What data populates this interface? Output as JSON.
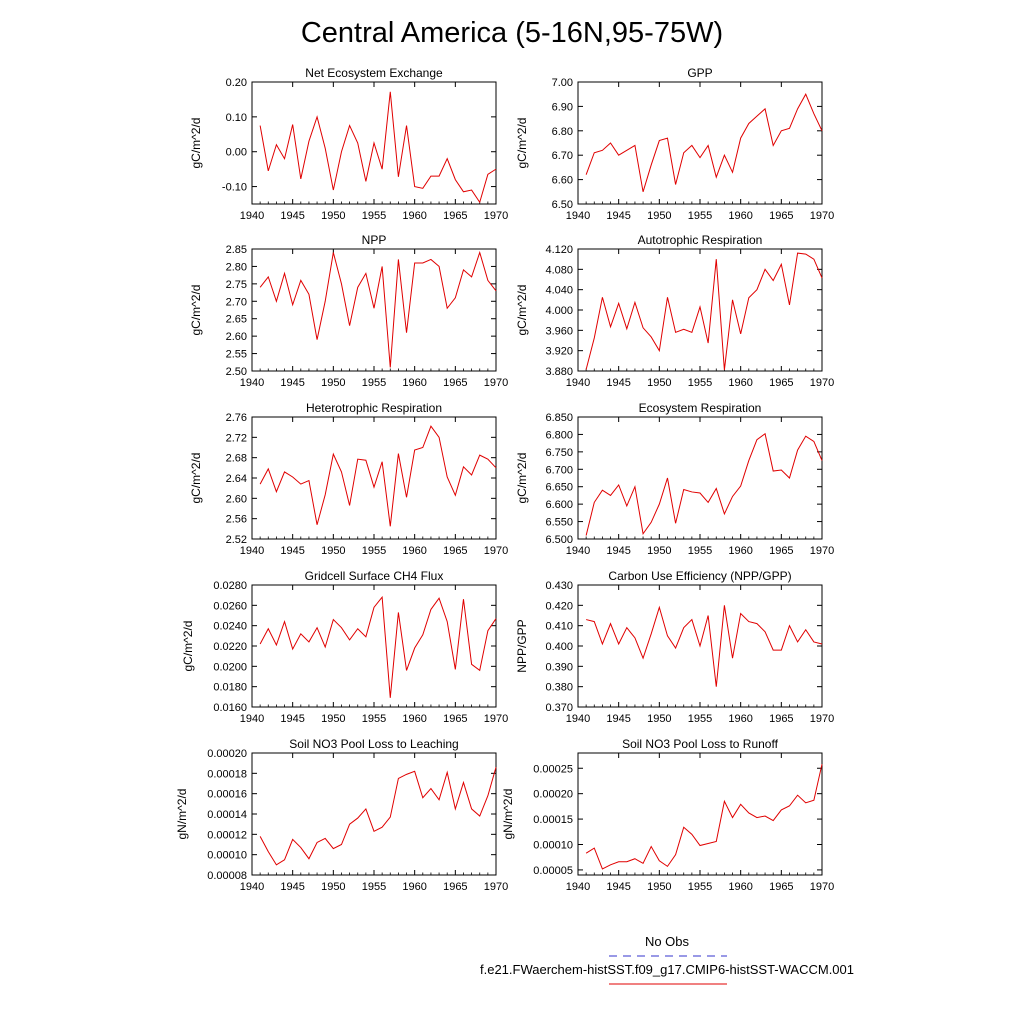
{
  "page_title": "Central America (5-16N,95-75W)",
  "legend": {
    "obs_label": "No Obs",
    "obs_color": "#3333cc",
    "model_label": "f.e21.FWaerchem-histSST.f09_g17.CMIP6-histSST-WACCM.001",
    "model_color": "#e00000"
  },
  "chart_data": [
    {
      "type": "line",
      "title": "Net Ecosystem Exchange",
      "ylabel": "gC/m^2/d",
      "xlim": [
        1940,
        1970
      ],
      "ylim": [
        -0.15,
        0.2
      ],
      "xticks": [
        1940,
        1945,
        1950,
        1955,
        1960,
        1965,
        1970
      ],
      "yticks": [
        "0.20",
        "0.10",
        "0.00",
        "-0.10"
      ],
      "ytick_values": [
        0.2,
        0.1,
        0.0,
        -0.1
      ],
      "x": [
        1941,
        1942,
        1943,
        1944,
        1945,
        1946,
        1947,
        1948,
        1949,
        1950,
        1951,
        1952,
        1953,
        1954,
        1955,
        1956,
        1957,
        1958,
        1959,
        1960,
        1961,
        1962,
        1963,
        1964,
        1965,
        1966,
        1967,
        1968,
        1969,
        1970
      ],
      "values": [
        0.075,
        -0.055,
        0.02,
        -0.02,
        0.078,
        -0.078,
        0.03,
        0.1,
        0.01,
        -0.11,
        0.0,
        0.075,
        0.025,
        -0.085,
        0.025,
        -0.05,
        0.172,
        -0.072,
        0.075,
        -0.1,
        -0.105,
        -0.07,
        -0.07,
        -0.02,
        -0.08,
        -0.115,
        -0.11,
        -0.145,
        -0.065,
        -0.05
      ]
    },
    {
      "type": "line",
      "title": "GPP",
      "ylabel": "gC/m^2/d",
      "xlim": [
        1940,
        1970
      ],
      "ylim": [
        6.5,
        7.0
      ],
      "xticks": [
        1940,
        1945,
        1950,
        1955,
        1960,
        1965,
        1970
      ],
      "yticks": [
        "7.00",
        "6.90",
        "6.80",
        "6.70",
        "6.60",
        "6.50"
      ],
      "ytick_values": [
        7.0,
        6.9,
        6.8,
        6.7,
        6.6,
        6.5
      ],
      "x": [
        1941,
        1942,
        1943,
        1944,
        1945,
        1946,
        1947,
        1948,
        1949,
        1950,
        1951,
        1952,
        1953,
        1954,
        1955,
        1956,
        1957,
        1958,
        1959,
        1960,
        1961,
        1962,
        1963,
        1964,
        1965,
        1966,
        1967,
        1968,
        1969,
        1970
      ],
      "values": [
        6.62,
        6.71,
        6.72,
        6.75,
        6.7,
        6.72,
        6.74,
        6.55,
        6.66,
        6.76,
        6.77,
        6.58,
        6.71,
        6.74,
        6.69,
        6.74,
        6.61,
        6.7,
        6.63,
        6.77,
        6.83,
        6.86,
        6.89,
        6.74,
        6.8,
        6.81,
        6.89,
        6.95,
        6.87,
        6.8
      ]
    },
    {
      "type": "line",
      "title": "NPP",
      "ylabel": "gC/m^2/d",
      "xlim": [
        1940,
        1970
      ],
      "ylim": [
        2.5,
        2.85
      ],
      "xticks": [
        1940,
        1945,
        1950,
        1955,
        1960,
        1965,
        1970
      ],
      "yticks": [
        "2.85",
        "2.80",
        "2.75",
        "2.70",
        "2.65",
        "2.60",
        "2.55",
        "2.50"
      ],
      "ytick_values": [
        2.85,
        2.8,
        2.75,
        2.7,
        2.65,
        2.6,
        2.55,
        2.5
      ],
      "x": [
        1941,
        1942,
        1943,
        1944,
        1945,
        1946,
        1947,
        1948,
        1949,
        1950,
        1951,
        1952,
        1953,
        1954,
        1955,
        1956,
        1957,
        1958,
        1959,
        1960,
        1961,
        1962,
        1963,
        1964,
        1965,
        1966,
        1967,
        1968,
        1969,
        1970
      ],
      "values": [
        2.74,
        2.77,
        2.7,
        2.78,
        2.69,
        2.76,
        2.72,
        2.59,
        2.7,
        2.84,
        2.75,
        2.63,
        2.74,
        2.78,
        2.68,
        2.8,
        2.51,
        2.82,
        2.61,
        2.81,
        2.81,
        2.82,
        2.8,
        2.68,
        2.71,
        2.79,
        2.77,
        2.84,
        2.76,
        2.73
      ]
    },
    {
      "type": "line",
      "title": "Autotrophic Respiration",
      "ylabel": "gC/m^2/d",
      "xlim": [
        1940,
        1970
      ],
      "ylim": [
        3.88,
        4.12
      ],
      "xticks": [
        1940,
        1945,
        1950,
        1955,
        1960,
        1965,
        1970
      ],
      "yticks": [
        "4.120",
        "4.080",
        "4.040",
        "4.000",
        "3.960",
        "3.920",
        "3.880"
      ],
      "ytick_values": [
        4.12,
        4.08,
        4.04,
        4.0,
        3.96,
        3.92,
        3.88
      ],
      "x": [
        1941,
        1942,
        1943,
        1944,
        1945,
        1946,
        1947,
        1948,
        1949,
        1950,
        1951,
        1952,
        1953,
        1954,
        1955,
        1956,
        1957,
        1958,
        1959,
        1960,
        1961,
        1962,
        1963,
        1964,
        1965,
        1966,
        1967,
        1968,
        1969,
        1970
      ],
      "values": [
        3.883,
        3.945,
        4.025,
        3.967,
        4.013,
        3.963,
        4.015,
        3.965,
        3.947,
        3.92,
        4.025,
        3.956,
        3.962,
        3.956,
        4.006,
        3.935,
        4.1,
        3.882,
        4.02,
        3.953,
        4.024,
        4.04,
        4.08,
        4.058,
        4.09,
        4.01,
        4.112,
        4.11,
        4.1,
        4.063
      ]
    },
    {
      "type": "line",
      "title": "Heterotrophic Respiration",
      "ylabel": "gC/m^2/d",
      "xlim": [
        1940,
        1970
      ],
      "ylim": [
        2.52,
        2.76
      ],
      "xticks": [
        1940,
        1945,
        1950,
        1955,
        1960,
        1965,
        1970
      ],
      "yticks": [
        "2.76",
        "2.72",
        "2.68",
        "2.64",
        "2.60",
        "2.56",
        "2.52"
      ],
      "ytick_values": [
        2.76,
        2.72,
        2.68,
        2.64,
        2.6,
        2.56,
        2.52
      ],
      "x": [
        1941,
        1942,
        1943,
        1944,
        1945,
        1946,
        1947,
        1948,
        1949,
        1950,
        1951,
        1952,
        1953,
        1954,
        1955,
        1956,
        1957,
        1958,
        1959,
        1960,
        1961,
        1962,
        1963,
        1964,
        1965,
        1966,
        1967,
        1968,
        1969,
        1970
      ],
      "values": [
        2.628,
        2.658,
        2.613,
        2.652,
        2.642,
        2.628,
        2.635,
        2.548,
        2.607,
        2.687,
        2.652,
        2.586,
        2.677,
        2.675,
        2.622,
        2.672,
        2.545,
        2.688,
        2.602,
        2.695,
        2.7,
        2.742,
        2.72,
        2.642,
        2.606,
        2.662,
        2.646,
        2.685,
        2.677,
        2.66
      ]
    },
    {
      "type": "line",
      "title": "Ecosystem Respiration",
      "ylabel": "gC/m^2/d",
      "xlim": [
        1940,
        1970
      ],
      "ylim": [
        6.5,
        6.85
      ],
      "xticks": [
        1940,
        1945,
        1950,
        1955,
        1960,
        1965,
        1970
      ],
      "yticks": [
        "6.850",
        "6.800",
        "6.750",
        "6.700",
        "6.650",
        "6.600",
        "6.550",
        "6.500"
      ],
      "ytick_values": [
        6.85,
        6.8,
        6.75,
        6.7,
        6.65,
        6.6,
        6.55,
        6.5
      ],
      "x": [
        1941,
        1942,
        1943,
        1944,
        1945,
        1946,
        1947,
        1948,
        1949,
        1950,
        1951,
        1952,
        1953,
        1954,
        1955,
        1956,
        1957,
        1958,
        1959,
        1960,
        1961,
        1962,
        1963,
        1964,
        1965,
        1966,
        1967,
        1968,
        1969,
        1970
      ],
      "values": [
        6.51,
        6.605,
        6.64,
        6.625,
        6.655,
        6.595,
        6.65,
        6.515,
        6.548,
        6.6,
        6.675,
        6.545,
        6.642,
        6.635,
        6.632,
        6.605,
        6.645,
        6.572,
        6.622,
        6.652,
        6.725,
        6.785,
        6.802,
        6.695,
        6.698,
        6.675,
        6.755,
        6.795,
        6.78,
        6.725
      ]
    },
    {
      "type": "line",
      "title": "Gridcell Surface CH4 Flux",
      "ylabel": "gC/m^2/d",
      "xlim": [
        1940,
        1970
      ],
      "ylim": [
        0.016,
        0.028
      ],
      "xticks": [
        1940,
        1945,
        1950,
        1955,
        1960,
        1965,
        1970
      ],
      "yticks": [
        "0.0280",
        "0.0260",
        "0.0240",
        "0.0220",
        "0.0200",
        "0.0180",
        "0.0160"
      ],
      "ytick_values": [
        0.028,
        0.026,
        0.024,
        0.022,
        0.02,
        0.018,
        0.016
      ],
      "x": [
        1941,
        1942,
        1943,
        1944,
        1945,
        1946,
        1947,
        1948,
        1949,
        1950,
        1951,
        1952,
        1953,
        1954,
        1955,
        1956,
        1957,
        1958,
        1959,
        1960,
        1961,
        1962,
        1963,
        1964,
        1965,
        1966,
        1967,
        1968,
        1969,
        1970
      ],
      "values": [
        0.0222,
        0.0237,
        0.0221,
        0.0244,
        0.0217,
        0.0232,
        0.0224,
        0.0238,
        0.0219,
        0.0246,
        0.0238,
        0.0226,
        0.0237,
        0.0229,
        0.0258,
        0.0268,
        0.0169,
        0.0253,
        0.0196,
        0.0218,
        0.0231,
        0.0256,
        0.0267,
        0.0244,
        0.0197,
        0.0266,
        0.0202,
        0.0196,
        0.0235,
        0.0247
      ]
    },
    {
      "type": "line",
      "title": "Carbon Use Efficiency (NPP/GPP)",
      "ylabel": "NPP/GPP",
      "xlim": [
        1940,
        1970
      ],
      "ylim": [
        0.37,
        0.43
      ],
      "xticks": [
        1940,
        1945,
        1950,
        1955,
        1960,
        1965,
        1970
      ],
      "yticks": [
        "0.430",
        "0.420",
        "0.410",
        "0.400",
        "0.390",
        "0.380",
        "0.370"
      ],
      "ytick_values": [
        0.43,
        0.42,
        0.41,
        0.4,
        0.39,
        0.38,
        0.37
      ],
      "x": [
        1941,
        1942,
        1943,
        1944,
        1945,
        1946,
        1947,
        1948,
        1949,
        1950,
        1951,
        1952,
        1953,
        1954,
        1955,
        1956,
        1957,
        1958,
        1959,
        1960,
        1961,
        1962,
        1963,
        1964,
        1965,
        1966,
        1967,
        1968,
        1969,
        1970
      ],
      "values": [
        0.413,
        0.412,
        0.401,
        0.411,
        0.401,
        0.409,
        0.404,
        0.394,
        0.406,
        0.419,
        0.405,
        0.399,
        0.409,
        0.413,
        0.4,
        0.415,
        0.38,
        0.42,
        0.394,
        0.416,
        0.412,
        0.411,
        0.407,
        0.398,
        0.398,
        0.41,
        0.402,
        0.408,
        0.402,
        0.401
      ]
    },
    {
      "type": "line",
      "title": "Soil NO3 Pool Loss to Leaching",
      "ylabel": "gN/m^2/d",
      "xlim": [
        1940,
        1970
      ],
      "ylim": [
        8e-05,
        0.0002
      ],
      "xticks": [
        1940,
        1945,
        1950,
        1955,
        1960,
        1965,
        1970
      ],
      "yticks": [
        "0.00020",
        "0.00018",
        "0.00016",
        "0.00014",
        "0.00012",
        "0.00010",
        "0.00008"
      ],
      "ytick_values": [
        0.0002,
        0.00018,
        0.00016,
        0.00014,
        0.00012,
        0.0001,
        8e-05
      ],
      "x": [
        1941,
        1942,
        1943,
        1944,
        1945,
        1946,
        1947,
        1948,
        1949,
        1950,
        1951,
        1952,
        1953,
        1954,
        1955,
        1956,
        1957,
        1958,
        1959,
        1960,
        1961,
        1962,
        1963,
        1964,
        1965,
        1966,
        1967,
        1968,
        1969,
        1970
      ],
      "values": [
        0.000118,
        0.000103,
        9e-05,
        9.5e-05,
        0.000115,
        0.000107,
        9.6e-05,
        0.000112,
        0.000116,
        0.000106,
        0.00011,
        0.00013,
        0.000136,
        0.000145,
        0.000123,
        0.000127,
        0.000137,
        0.000175,
        0.000179,
        0.000182,
        0.000156,
        0.000165,
        0.000154,
        0.000181,
        0.000145,
        0.000171,
        0.000145,
        0.000138,
        0.000158,
        0.000186
      ]
    },
    {
      "type": "line",
      "title": "Soil NO3 Pool Loss to Runoff",
      "ylabel": "gN/m^2/d",
      "xlim": [
        1940,
        1970
      ],
      "ylim": [
        4e-05,
        0.00028
      ],
      "xticks": [
        1940,
        1945,
        1950,
        1955,
        1960,
        1965,
        1970
      ],
      "yticks": [
        "0.00025",
        "0.00020",
        "0.00015",
        "0.00010",
        "0.00005"
      ],
      "ytick_values": [
        0.00025,
        0.0002,
        0.00015,
        0.0001,
        5e-05
      ],
      "x": [
        1941,
        1942,
        1943,
        1944,
        1945,
        1946,
        1947,
        1948,
        1949,
        1950,
        1951,
        1952,
        1953,
        1954,
        1955,
        1956,
        1957,
        1958,
        1959,
        1960,
        1961,
        1962,
        1963,
        1964,
        1965,
        1966,
        1967,
        1968,
        1969,
        1970
      ],
      "values": [
        8.3e-05,
        9.3e-05,
        5.2e-05,
        6e-05,
        6.6e-05,
        6.6e-05,
        7.2e-05,
        6.3e-05,
        9.6e-05,
        6.8e-05,
        5.7e-05,
        8e-05,
        0.000134,
        0.00012,
        9.8e-05,
        0.000102,
        0.000106,
        0.000185,
        0.000153,
        0.000179,
        0.000162,
        0.000153,
        0.000156,
        0.000147,
        0.000168,
        0.000176,
        0.000197,
        0.000182,
        0.000187,
        0.000258
      ]
    }
  ]
}
